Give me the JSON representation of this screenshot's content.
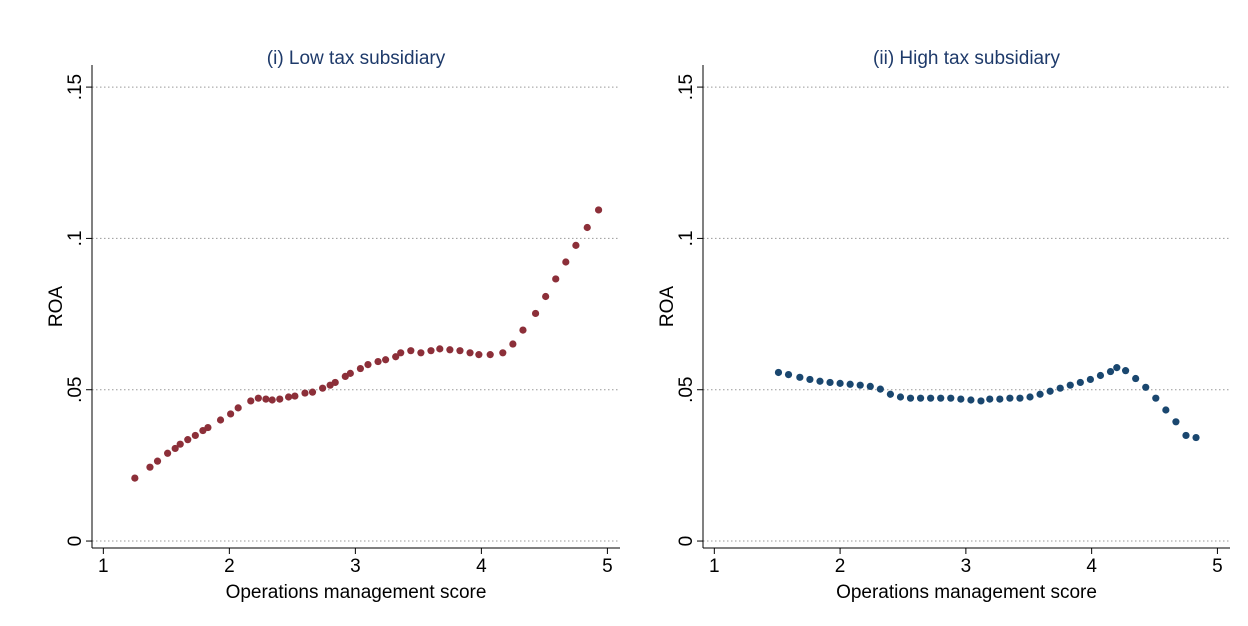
{
  "chart_data": [
    {
      "type": "scatter",
      "title": "(i) Low tax subsidiary",
      "x_label": "Operations management score",
      "y_label": "ROA",
      "color": "#8c2f39",
      "grid": true,
      "xlim": [
        0.91,
        5.1
      ],
      "ylim": [
        -0.0023,
        0.1573
      ],
      "xticks": [
        1,
        2,
        3,
        4,
        5
      ],
      "yticks": [
        0,
        {
          "value": 0.05,
          "label": ".05"
        },
        {
          "value": 0.1,
          "label": ".1"
        },
        {
          "value": 0.15,
          "label": ".15"
        }
      ],
      "x": [
        1.25,
        1.37,
        1.43,
        1.51,
        1.57,
        1.61,
        1.67,
        1.73,
        1.79,
        1.83,
        1.93,
        2.01,
        2.07,
        2.17,
        2.23,
        2.29,
        2.34,
        2.4,
        2.47,
        2.52,
        2.6,
        2.66,
        2.74,
        2.8,
        2.84,
        2.92,
        2.96,
        3.04,
        3.1,
        3.18,
        3.24,
        3.32,
        3.36,
        3.44,
        3.52,
        3.6,
        3.67,
        3.75,
        3.83,
        3.91,
        3.98,
        4.07,
        4.17,
        4.25,
        4.33,
        4.43,
        4.51,
        4.59,
        4.67,
        4.75,
        4.84,
        4.93
      ],
      "values": [
        0.0208,
        0.0244,
        0.0264,
        0.029,
        0.0306,
        0.032,
        0.0335,
        0.0349,
        0.0365,
        0.0375,
        0.04,
        0.042,
        0.044,
        0.0463,
        0.0472,
        0.0469,
        0.0466,
        0.0469,
        0.0476,
        0.0479,
        0.0489,
        0.0492,
        0.0505,
        0.0515,
        0.0524,
        0.0544,
        0.0554,
        0.057,
        0.0583,
        0.0593,
        0.0599,
        0.0609,
        0.0622,
        0.0629,
        0.0622,
        0.0629,
        0.0635,
        0.0632,
        0.0629,
        0.0622,
        0.0616,
        0.0616,
        0.0622,
        0.0651,
        0.0697,
        0.0752,
        0.0808,
        0.0866,
        0.0922,
        0.0977,
        0.1036,
        0.1094
      ]
    },
    {
      "type": "scatter",
      "title": "(ii) High tax subsidiary",
      "x_label": "Operations management score",
      "y_label": "ROA",
      "color": "#1a476f",
      "grid": true,
      "xlim": [
        0.91,
        5.1
      ],
      "ylim": [
        -0.0023,
        0.1573
      ],
      "xticks": [
        1,
        2,
        3,
        4,
        5
      ],
      "yticks": [
        0,
        {
          "value": 0.05,
          "label": ".05"
        },
        {
          "value": 0.1,
          "label": ".1"
        },
        {
          "value": 0.15,
          "label": ".15"
        }
      ],
      "x": [
        1.51,
        1.59,
        1.68,
        1.76,
        1.84,
        1.92,
        2.0,
        2.08,
        2.16,
        2.24,
        2.32,
        2.4,
        2.48,
        2.56,
        2.64,
        2.72,
        2.8,
        2.88,
        2.96,
        3.04,
        3.12,
        3.19,
        3.27,
        3.35,
        3.43,
        3.51,
        3.59,
        3.67,
        3.75,
        3.83,
        3.91,
        3.99,
        4.07,
        4.15,
        4.2,
        4.27,
        4.35,
        4.43,
        4.51,
        4.59,
        4.67,
        4.75,
        4.83
      ],
      "values": [
        0.0557,
        0.055,
        0.0541,
        0.0534,
        0.0528,
        0.0524,
        0.0521,
        0.0518,
        0.0515,
        0.0511,
        0.0502,
        0.0485,
        0.0476,
        0.0472,
        0.0472,
        0.0472,
        0.0472,
        0.0472,
        0.0469,
        0.0466,
        0.0463,
        0.0469,
        0.0469,
        0.0472,
        0.0472,
        0.0476,
        0.0485,
        0.0495,
        0.0505,
        0.0515,
        0.0524,
        0.0534,
        0.0547,
        0.056,
        0.0573,
        0.0563,
        0.0537,
        0.0508,
        0.0472,
        0.0433,
        0.0394,
        0.0349,
        0.0342
      ]
    }
  ]
}
